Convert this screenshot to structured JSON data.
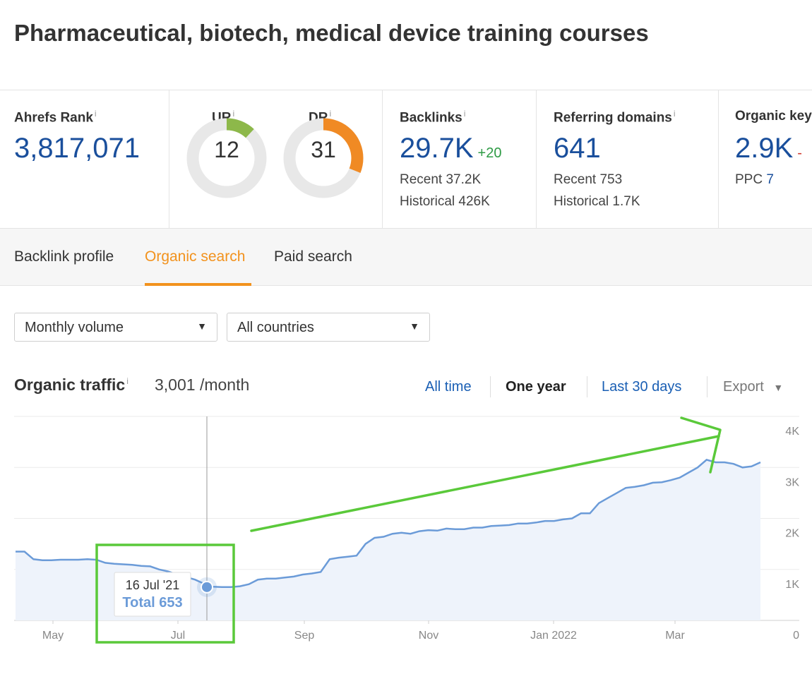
{
  "page": {
    "title": "Pharmaceutical, biotech, medical device training courses"
  },
  "metrics": {
    "ahrefs_rank": {
      "label": "Ahrefs Rank",
      "value": "3,817,071"
    },
    "ur": {
      "label": "UR",
      "value": "12",
      "score": 12,
      "color": "#8db84a"
    },
    "dr": {
      "label": "DR",
      "value": "31",
      "score": 31,
      "color": "#f08a24"
    },
    "backlinks": {
      "label": "Backlinks",
      "value": "29.7K",
      "delta": "+20",
      "recent": "Recent 37.2K",
      "historical": "Historical 426K"
    },
    "referring_domains": {
      "label": "Referring domains",
      "value": "641",
      "recent": "Recent 753",
      "historical": "Historical 1.7K"
    },
    "organic_keywords": {
      "label": "Organic key",
      "value": "2.9K",
      "delta": "-",
      "ppc_label": "PPC",
      "ppc_value": "7"
    }
  },
  "tabs": [
    {
      "label": "Backlink profile",
      "active": false
    },
    {
      "label": "Organic search",
      "active": true
    },
    {
      "label": "Paid search",
      "active": false
    }
  ],
  "filters": {
    "volume": {
      "value": "Monthly volume"
    },
    "country": {
      "value": "All countries"
    }
  },
  "organic_traffic": {
    "title": "Organic traffic",
    "value": "3,001 /month",
    "ranges": [
      "All time",
      "One year",
      "Last 30 days"
    ],
    "selected_range": "One year",
    "export_label": "Export"
  },
  "chart_data": {
    "type": "area",
    "x_ticks": [
      "May",
      "Jul",
      "Sep",
      "Nov",
      "Jan 2022",
      "Mar"
    ],
    "y_ticks": [
      "4K",
      "3K",
      "2K",
      "1K",
      "0"
    ],
    "ylim": [
      0,
      4000
    ],
    "grid": true,
    "series": [
      {
        "values": [
          1350,
          1350,
          1200,
          1180,
          1180,
          1190,
          1190,
          1190,
          1200,
          1190,
          1130,
          1110,
          1100,
          1090,
          1070,
          1060,
          1000,
          960,
          900,
          850,
          800,
          720,
          660,
          653,
          653,
          670,
          710,
          800,
          820,
          820,
          840,
          860,
          900,
          920,
          950,
          1200,
          1230,
          1250,
          1270,
          1500,
          1620,
          1640,
          1700,
          1720,
          1700,
          1750,
          1770,
          1760,
          1800,
          1790,
          1790,
          1820,
          1820,
          1850,
          1860,
          1870,
          1900,
          1900,
          1920,
          1950,
          1950,
          1980,
          2000,
          2100,
          2100,
          2300,
          2400,
          2500,
          2600,
          2620,
          2650,
          2700,
          2710,
          2750,
          2800,
          2900,
          3000,
          3150,
          3100,
          3100,
          3070,
          3000,
          3020,
          3100
        ],
        "color": "#6b9bd8"
      }
    ],
    "tooltip": {
      "date": "16 Jul '21",
      "total_label": "Total 653"
    },
    "annotations": {
      "box_color": "#5ac93a",
      "arrow_color": "#5ac93a"
    }
  }
}
